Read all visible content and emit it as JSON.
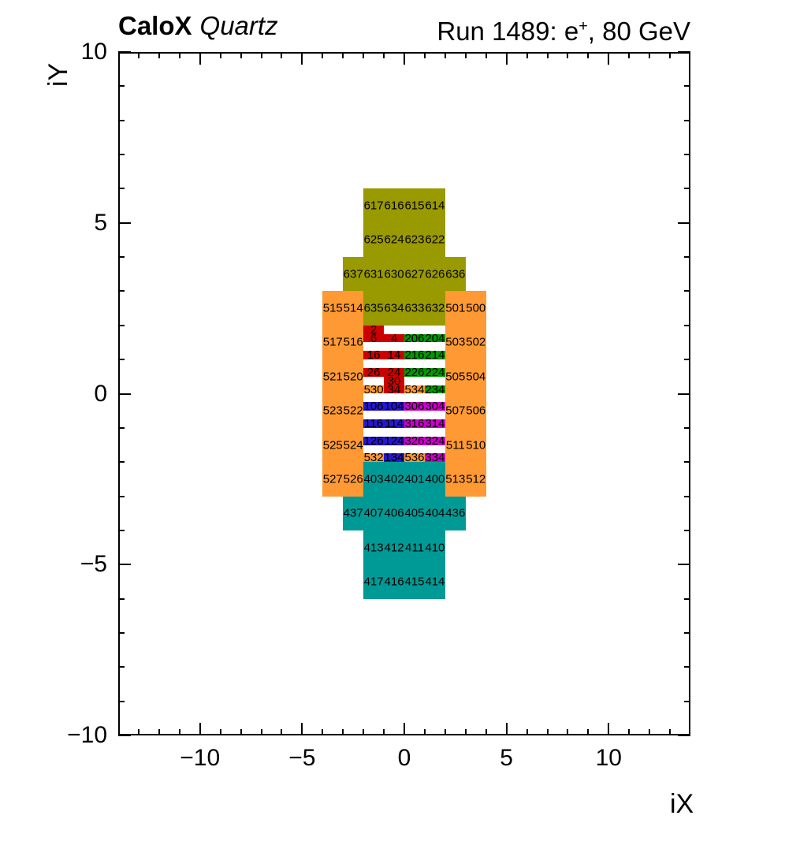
{
  "chart_data": {
    "type": "heatmap",
    "title_left": {
      "bold": "CaloX",
      "italic": "Quartz"
    },
    "title_right": {
      "prefix": "Run 1489: e",
      "sup": "+",
      "suffix": ", 80 GeV"
    },
    "xlabel": "iX",
    "ylabel": "iY",
    "xlim": [
      -14,
      14
    ],
    "ylim": [
      -10,
      10
    ],
    "minor_tick_every": 1,
    "major_tick_every": 5,
    "x_ticks_labeled": [
      {
        "v": -10,
        "label": "−10"
      },
      {
        "v": -5,
        "label": "−5"
      },
      {
        "v": 0,
        "label": "0"
      },
      {
        "v": 5,
        "label": "5"
      },
      {
        "v": 10,
        "label": "10"
      }
    ],
    "y_ticks_labeled": [
      {
        "v": 10,
        "label": "10"
      },
      {
        "v": 5,
        "label": "5"
      },
      {
        "v": 0,
        "label": "0"
      },
      {
        "v": -5,
        "label": "−5"
      },
      {
        "v": -10,
        "label": "−10"
      }
    ],
    "colors": {
      "olive": "#999900",
      "orange": "#ff9933",
      "red": "#cc0000",
      "green": "#009900",
      "blue": "#2618cf",
      "magenta": "#cc00cc",
      "teal": "#009a96"
    },
    "blocks": [
      {
        "color": "olive",
        "x0": -2,
        "x1": 2,
        "y0": 4,
        "y1": 6
      },
      {
        "color": "olive",
        "x0": -3,
        "x1": 3,
        "y0": 3,
        "y1": 4
      },
      {
        "color": "olive",
        "x0": -2,
        "x1": 2,
        "y0": 2,
        "y1": 3
      },
      {
        "color": "orange",
        "x0": -4,
        "x1": -2,
        "y0": -3,
        "y1": 3
      },
      {
        "color": "orange",
        "x0": 2,
        "x1": 4,
        "y0": -3,
        "y1": 3
      },
      {
        "color": "teal",
        "x0": -2,
        "x1": 2,
        "y0": -3,
        "y1": -2
      },
      {
        "color": "teal",
        "x0": -3,
        "x1": 3,
        "y0": -4,
        "y1": -3
      },
      {
        "color": "teal",
        "x0": -2,
        "x1": 2,
        "y0": -6,
        "y1": -4
      }
    ],
    "cells": [
      {
        "label": "2",
        "color": "red",
        "x0": -2,
        "x1": -1,
        "y0": 1.75,
        "y1": 2
      },
      {
        "label": "6",
        "color": "red",
        "x0": -2,
        "x1": -1,
        "y0": 1.5,
        "y1": 1.75
      },
      {
        "label": "4",
        "color": "red",
        "x0": -1,
        "x1": 0,
        "y0": 1.5,
        "y1": 1.75
      },
      {
        "label": "206",
        "color": "green",
        "x0": 0,
        "x1": 1,
        "y0": 1.5,
        "y1": 1.75
      },
      {
        "label": "204",
        "color": "green",
        "x0": 1,
        "x1": 2,
        "y0": 1.5,
        "y1": 1.75
      },
      {
        "label": "16",
        "color": "red",
        "x0": -2,
        "x1": -1,
        "y0": 1,
        "y1": 1.25
      },
      {
        "label": "14",
        "color": "red",
        "x0": -1,
        "x1": 0,
        "y0": 1,
        "y1": 1.25
      },
      {
        "label": "216",
        "color": "green",
        "x0": 0,
        "x1": 1,
        "y0": 1,
        "y1": 1.25
      },
      {
        "label": "214",
        "color": "green",
        "x0": 1,
        "x1": 2,
        "y0": 1,
        "y1": 1.25
      },
      {
        "label": "26",
        "color": "red",
        "x0": -2,
        "x1": -1,
        "y0": 0.5,
        "y1": 0.75
      },
      {
        "label": "24",
        "color": "red",
        "x0": -1,
        "x1": 0,
        "y0": 0.5,
        "y1": 0.75
      },
      {
        "label": "226",
        "color": "green",
        "x0": 0,
        "x1": 1,
        "y0": 0.5,
        "y1": 0.75
      },
      {
        "label": "224",
        "color": "green",
        "x0": 1,
        "x1": 2,
        "y0": 0.5,
        "y1": 0.75
      },
      {
        "label": "30",
        "color": "red",
        "x0": -1,
        "x1": 0,
        "y0": 0.25,
        "y1": 0.5
      },
      {
        "label": "530",
        "color": "orange",
        "x0": -2,
        "x1": -1,
        "y0": 0,
        "y1": 0.25
      },
      {
        "label": "34",
        "color": "red",
        "x0": -1,
        "x1": 0,
        "y0": 0,
        "y1": 0.25
      },
      {
        "label": "534",
        "color": "orange",
        "x0": 0,
        "x1": 1,
        "y0": 0,
        "y1": 0.25
      },
      {
        "label": "234",
        "color": "green",
        "x0": 1,
        "x1": 2,
        "y0": 0,
        "y1": 0.25
      },
      {
        "label": "106",
        "color": "blue",
        "x0": -2,
        "x1": -1,
        "y0": -0.5,
        "y1": -0.25
      },
      {
        "label": "104",
        "color": "blue",
        "x0": -1,
        "x1": 0,
        "y0": -0.5,
        "y1": -0.25
      },
      {
        "label": "306",
        "color": "magenta",
        "x0": 0,
        "x1": 1,
        "y0": -0.5,
        "y1": -0.25
      },
      {
        "label": "304",
        "color": "magenta",
        "x0": 1,
        "x1": 2,
        "y0": -0.5,
        "y1": -0.25
      },
      {
        "label": "116",
        "color": "blue",
        "x0": -2,
        "x1": -1,
        "y0": -1,
        "y1": -0.75
      },
      {
        "label": "114",
        "color": "blue",
        "x0": -1,
        "x1": 0,
        "y0": -1,
        "y1": -0.75
      },
      {
        "label": "316",
        "color": "magenta",
        "x0": 0,
        "x1": 1,
        "y0": -1,
        "y1": -0.75
      },
      {
        "label": "314",
        "color": "magenta",
        "x0": 1,
        "x1": 2,
        "y0": -1,
        "y1": -0.75
      },
      {
        "label": "126",
        "color": "blue",
        "x0": -2,
        "x1": -1,
        "y0": -1.5,
        "y1": -1.25
      },
      {
        "label": "124",
        "color": "blue",
        "x0": -1,
        "x1": 0,
        "y0": -1.5,
        "y1": -1.25
      },
      {
        "label": "326",
        "color": "magenta",
        "x0": 0,
        "x1": 1,
        "y0": -1.5,
        "y1": -1.25
      },
      {
        "label": "324",
        "color": "magenta",
        "x0": 1,
        "x1": 2,
        "y0": -1.5,
        "y1": -1.25
      },
      {
        "label": "532",
        "color": "orange",
        "x0": -2,
        "x1": -1,
        "y0": -2,
        "y1": -1.75
      },
      {
        "label": "134",
        "color": "blue",
        "x0": -1,
        "x1": 0,
        "y0": -2,
        "y1": -1.75
      },
      {
        "label": "536",
        "color": "orange",
        "x0": 0,
        "x1": 1,
        "y0": -2,
        "y1": -1.75
      },
      {
        "label": "334",
        "color": "magenta",
        "x0": 1,
        "x1": 2,
        "y0": -2,
        "y1": -1.75
      }
    ],
    "channel_labels": [
      {
        "text": "617",
        "x": -1.5,
        "y": 5.5
      },
      {
        "text": "616",
        "x": -0.5,
        "y": 5.5
      },
      {
        "text": "615",
        "x": 0.5,
        "y": 5.5
      },
      {
        "text": "614",
        "x": 1.5,
        "y": 5.5
      },
      {
        "text": "625",
        "x": -1.5,
        "y": 4.5
      },
      {
        "text": "624",
        "x": -0.5,
        "y": 4.5
      },
      {
        "text": "623",
        "x": 0.5,
        "y": 4.5
      },
      {
        "text": "622",
        "x": 1.5,
        "y": 4.5
      },
      {
        "text": "637",
        "x": -2.5,
        "y": 3.5
      },
      {
        "text": "631",
        "x": -1.5,
        "y": 3.5
      },
      {
        "text": "630",
        "x": -0.5,
        "y": 3.5
      },
      {
        "text": "627",
        "x": 0.5,
        "y": 3.5
      },
      {
        "text": "626",
        "x": 1.5,
        "y": 3.5
      },
      {
        "text": "636",
        "x": 2.5,
        "y": 3.5
      },
      {
        "text": "635",
        "x": -1.5,
        "y": 2.5
      },
      {
        "text": "634",
        "x": -0.5,
        "y": 2.5
      },
      {
        "text": "633",
        "x": 0.5,
        "y": 2.5
      },
      {
        "text": "632",
        "x": 1.5,
        "y": 2.5
      },
      {
        "text": "515",
        "x": -3.5,
        "y": 2.5
      },
      {
        "text": "514",
        "x": -2.5,
        "y": 2.5
      },
      {
        "text": "517",
        "x": -3.5,
        "y": 1.5
      },
      {
        "text": "516",
        "x": -2.5,
        "y": 1.5
      },
      {
        "text": "521",
        "x": -3.5,
        "y": 0.5
      },
      {
        "text": "520",
        "x": -2.5,
        "y": 0.5
      },
      {
        "text": "523",
        "x": -3.5,
        "y": -0.5
      },
      {
        "text": "522",
        "x": -2.5,
        "y": -0.5
      },
      {
        "text": "525",
        "x": -3.5,
        "y": -1.5
      },
      {
        "text": "524",
        "x": -2.5,
        "y": -1.5
      },
      {
        "text": "527",
        "x": -3.5,
        "y": -2.5
      },
      {
        "text": "526",
        "x": -2.5,
        "y": -2.5
      },
      {
        "text": "501",
        "x": 2.5,
        "y": 2.5
      },
      {
        "text": "500",
        "x": 3.5,
        "y": 2.5
      },
      {
        "text": "503",
        "x": 2.5,
        "y": 1.5
      },
      {
        "text": "502",
        "x": 3.5,
        "y": 1.5
      },
      {
        "text": "505",
        "x": 2.5,
        "y": 0.5
      },
      {
        "text": "504",
        "x": 3.5,
        "y": 0.5
      },
      {
        "text": "507",
        "x": 2.5,
        "y": -0.5
      },
      {
        "text": "506",
        "x": 3.5,
        "y": -0.5
      },
      {
        "text": "511",
        "x": 2.5,
        "y": -1.5
      },
      {
        "text": "510",
        "x": 3.5,
        "y": -1.5
      },
      {
        "text": "513",
        "x": 2.5,
        "y": -2.5
      },
      {
        "text": "512",
        "x": 3.5,
        "y": -2.5
      },
      {
        "text": "403",
        "x": -1.5,
        "y": -2.5
      },
      {
        "text": "402",
        "x": -0.5,
        "y": -2.5
      },
      {
        "text": "401",
        "x": 0.5,
        "y": -2.5
      },
      {
        "text": "400",
        "x": 1.5,
        "y": -2.5
      },
      {
        "text": "437",
        "x": -2.5,
        "y": -3.5
      },
      {
        "text": "407",
        "x": -1.5,
        "y": -3.5
      },
      {
        "text": "406",
        "x": -0.5,
        "y": -3.5
      },
      {
        "text": "405",
        "x": 0.5,
        "y": -3.5
      },
      {
        "text": "404",
        "x": 1.5,
        "y": -3.5
      },
      {
        "text": "436",
        "x": 2.5,
        "y": -3.5
      },
      {
        "text": "413",
        "x": -1.5,
        "y": -4.5
      },
      {
        "text": "412",
        "x": -0.5,
        "y": -4.5
      },
      {
        "text": "411",
        "x": 0.5,
        "y": -4.5
      },
      {
        "text": "410",
        "x": 1.5,
        "y": -4.5
      },
      {
        "text": "417",
        "x": -1.5,
        "y": -5.5
      },
      {
        "text": "416",
        "x": -0.5,
        "y": -5.5
      },
      {
        "text": "415",
        "x": 0.5,
        "y": -5.5
      },
      {
        "text": "414",
        "x": 1.5,
        "y": -5.5
      }
    ]
  }
}
